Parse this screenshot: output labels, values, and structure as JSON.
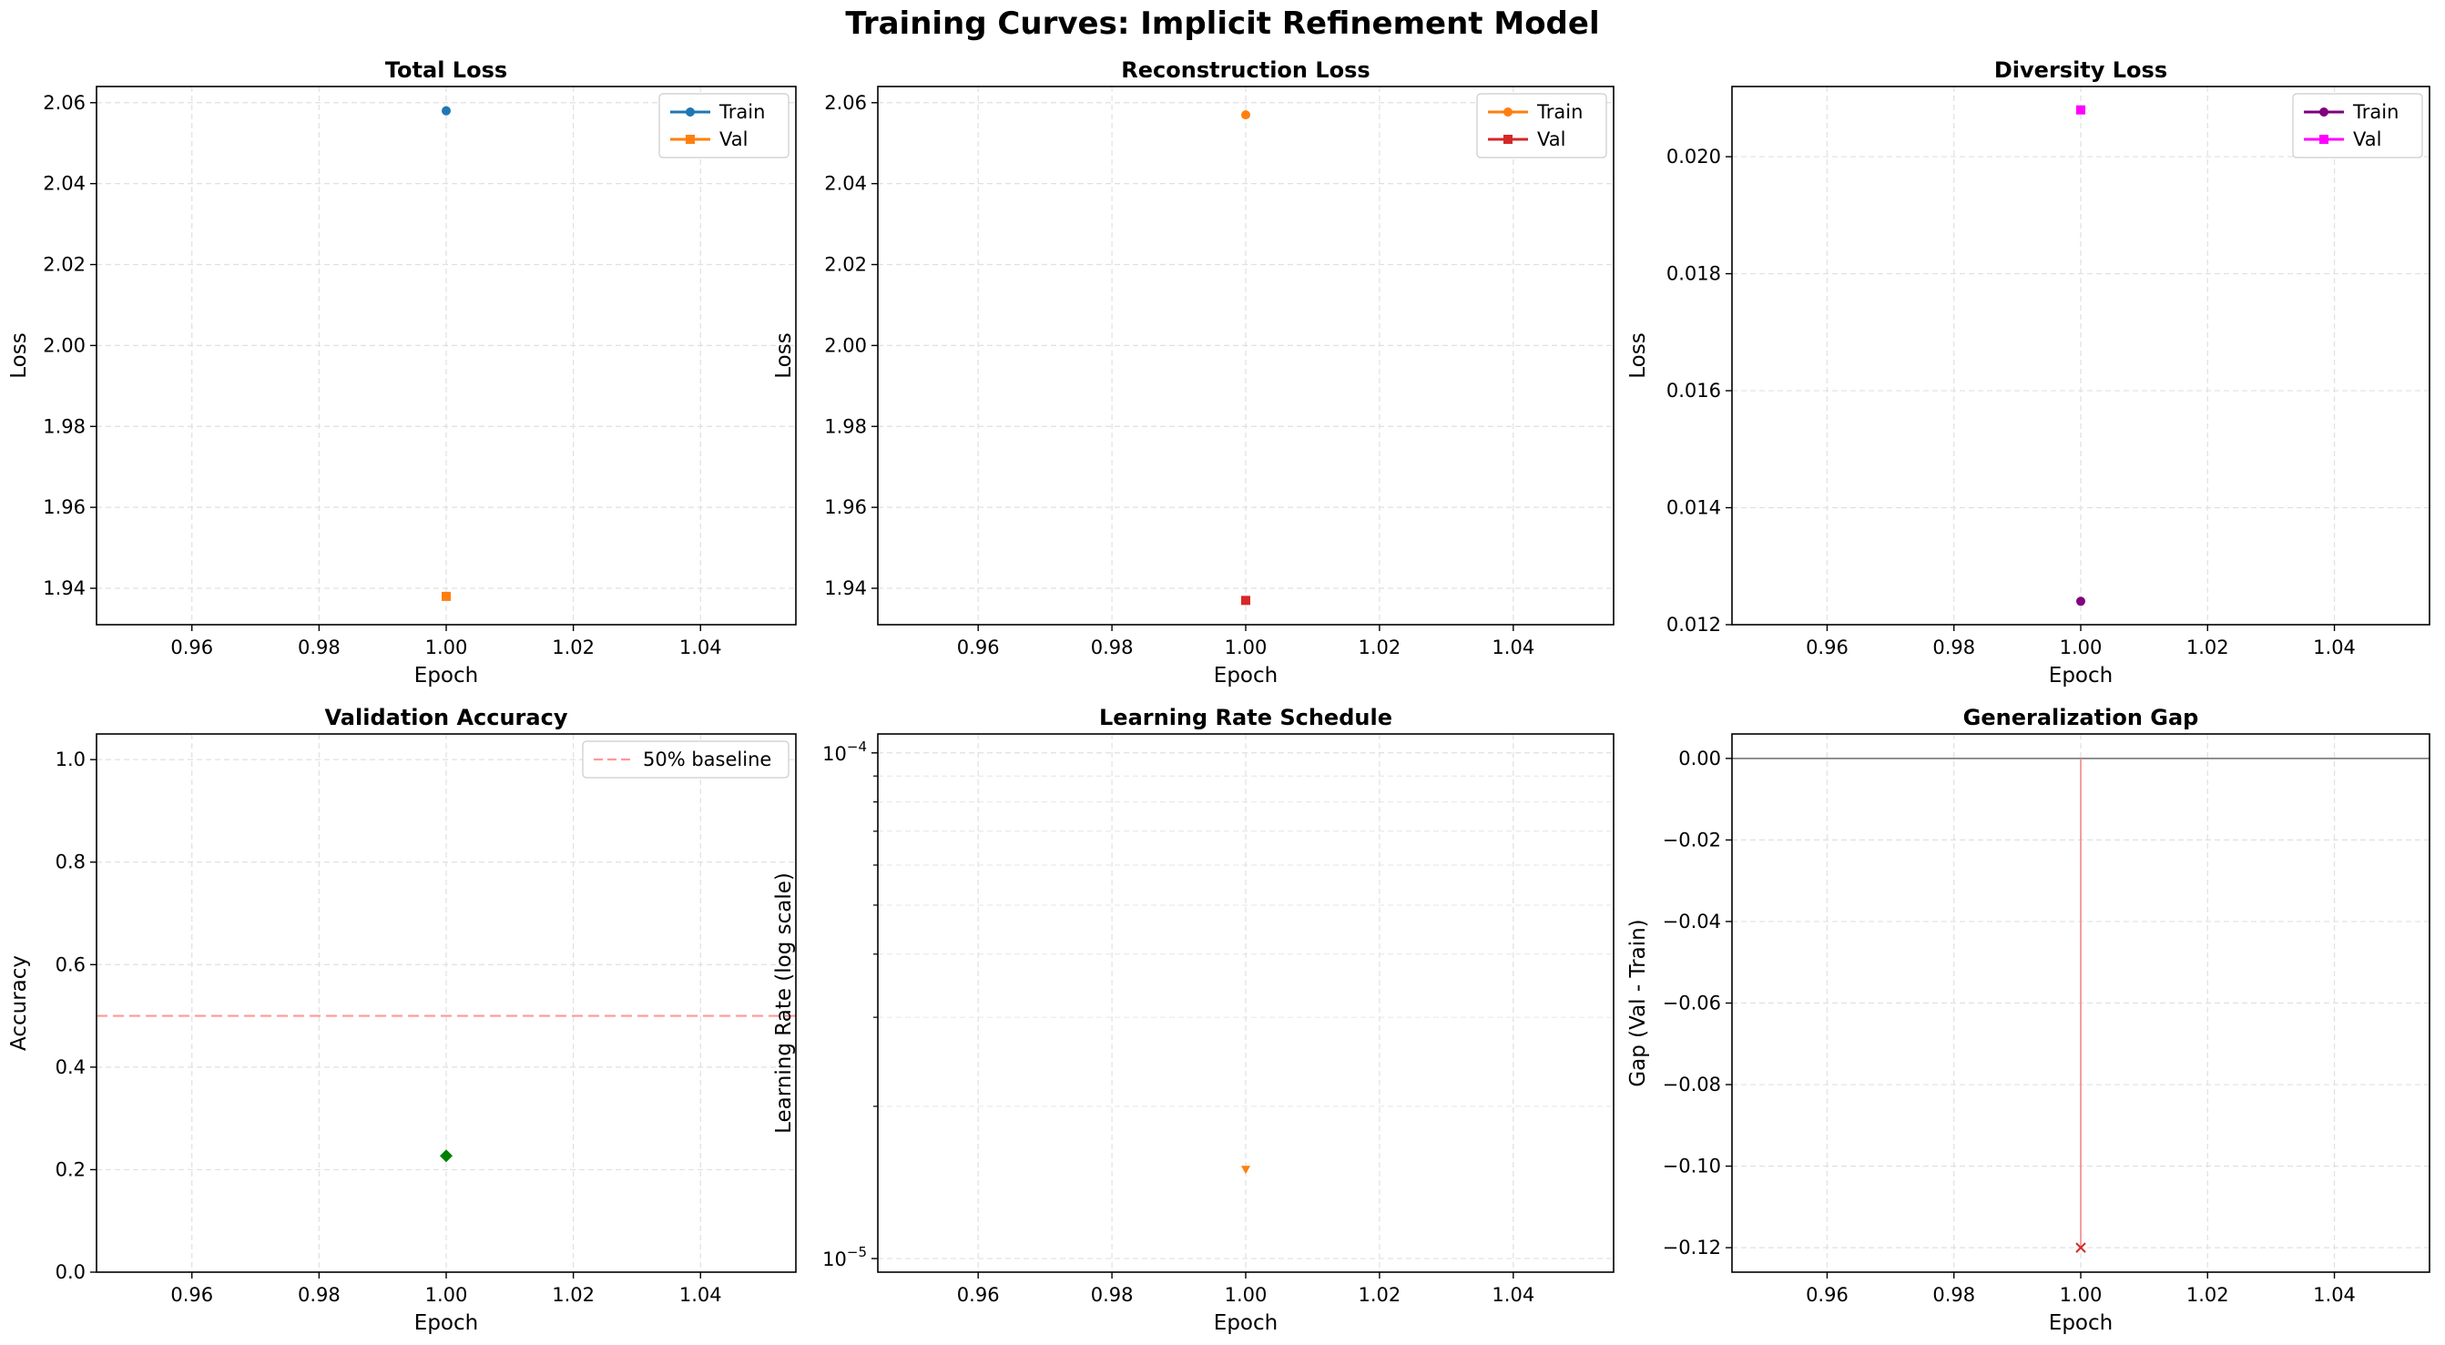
{
  "figure": {
    "title": "Training Curves: Implicit Refinement Model"
  },
  "chart_data": [
    {
      "type": "scatter",
      "title": "Total Loss",
      "xlabel": "Epoch",
      "ylabel": "Loss",
      "xlim": [
        0.945,
        1.055
      ],
      "ylim": [
        1.931,
        2.064
      ],
      "xticks": [
        0.96,
        0.98,
        1.0,
        1.02,
        1.04
      ],
      "xtick_labels": [
        "0.96",
        "0.98",
        "1.00",
        "1.02",
        "1.04"
      ],
      "yticks": [
        1.94,
        1.96,
        1.98,
        2.0,
        2.02,
        2.04,
        2.06
      ],
      "ytick_labels": [
        "1.94",
        "1.96",
        "1.98",
        "2.00",
        "2.02",
        "2.04",
        "2.06"
      ],
      "grid": true,
      "legend": "top-right",
      "series": [
        {
          "name": "Train",
          "x": [
            1.0
          ],
          "y": [
            2.058
          ],
          "color": "#1f77b4",
          "marker": "circle"
        },
        {
          "name": "Val",
          "x": [
            1.0
          ],
          "y": [
            1.938
          ],
          "color": "#ff7f0e",
          "marker": "square"
        }
      ]
    },
    {
      "type": "scatter",
      "title": "Reconstruction Loss",
      "xlabel": "Epoch",
      "ylabel": "Loss",
      "xlim": [
        0.945,
        1.055
      ],
      "ylim": [
        1.931,
        2.064
      ],
      "xticks": [
        0.96,
        0.98,
        1.0,
        1.02,
        1.04
      ],
      "xtick_labels": [
        "0.96",
        "0.98",
        "1.00",
        "1.02",
        "1.04"
      ],
      "yticks": [
        1.94,
        1.96,
        1.98,
        2.0,
        2.02,
        2.04,
        2.06
      ],
      "ytick_labels": [
        "1.94",
        "1.96",
        "1.98",
        "2.00",
        "2.02",
        "2.04",
        "2.06"
      ],
      "grid": true,
      "legend": "top-right",
      "series": [
        {
          "name": "Train",
          "x": [
            1.0
          ],
          "y": [
            2.057
          ],
          "color": "#ff7f0e",
          "marker": "circle"
        },
        {
          "name": "Val",
          "x": [
            1.0
          ],
          "y": [
            1.937
          ],
          "color": "#d62728",
          "marker": "square"
        }
      ]
    },
    {
      "type": "scatter",
      "title": "Diversity Loss",
      "xlabel": "Epoch",
      "ylabel": "Loss",
      "xlim": [
        0.945,
        1.055
      ],
      "ylim": [
        0.012,
        0.0212
      ],
      "xticks": [
        0.96,
        0.98,
        1.0,
        1.02,
        1.04
      ],
      "xtick_labels": [
        "0.96",
        "0.98",
        "1.00",
        "1.02",
        "1.04"
      ],
      "yticks": [
        0.012,
        0.014,
        0.016,
        0.018,
        0.02
      ],
      "ytick_labels": [
        "0.012",
        "0.014",
        "0.016",
        "0.018",
        "0.020"
      ],
      "grid": true,
      "legend": "top-right",
      "series": [
        {
          "name": "Train",
          "x": [
            1.0
          ],
          "y": [
            0.0124
          ],
          "color": "#800080",
          "marker": "circle"
        },
        {
          "name": "Val",
          "x": [
            1.0
          ],
          "y": [
            0.0208
          ],
          "color": "#ff00ff",
          "marker": "square"
        }
      ]
    },
    {
      "type": "scatter",
      "title": "Validation Accuracy",
      "xlabel": "Epoch",
      "ylabel": "Accuracy",
      "xlim": [
        0.945,
        1.055
      ],
      "ylim": [
        0.0,
        1.05
      ],
      "xticks": [
        0.96,
        0.98,
        1.0,
        1.02,
        1.04
      ],
      "xtick_labels": [
        "0.96",
        "0.98",
        "1.00",
        "1.02",
        "1.04"
      ],
      "yticks": [
        0.0,
        0.2,
        0.4,
        0.6,
        0.8,
        1.0
      ],
      "ytick_labels": [
        "0.0",
        "0.2",
        "0.4",
        "0.6",
        "0.8",
        "1.0"
      ],
      "grid": true,
      "legend": "top-right",
      "series": [
        {
          "x": [
            1.0
          ],
          "y": [
            0.227
          ],
          "color": "#008000",
          "marker": "diamond"
        }
      ],
      "hlines": [
        {
          "name": "50% baseline",
          "y": 0.5,
          "color": "#ff9896",
          "style": "dashed"
        }
      ]
    },
    {
      "type": "scatter",
      "title": "Learning Rate Schedule",
      "xlabel": "Epoch",
      "ylabel": "Learning Rate (log scale)",
      "yscale": "log",
      "xlim": [
        0.945,
        1.055
      ],
      "ylim": [
        9.4e-06,
        0.000109
      ],
      "xticks": [
        0.96,
        0.98,
        1.0,
        1.02,
        1.04
      ],
      "xtick_labels": [
        "0.96",
        "0.98",
        "1.00",
        "1.02",
        "1.04"
      ],
      "yticks": [
        1e-05,
        0.0001
      ],
      "ytick_labels": [
        [
          "10",
          "−5"
        ],
        [
          "10",
          "−4"
        ]
      ],
      "grid": true,
      "series": [
        {
          "x": [
            1.0
          ],
          "y": [
            1.5e-05
          ],
          "color": "#ff7f0e",
          "marker": "triangle-down"
        }
      ]
    },
    {
      "type": "scatter",
      "title": "Generalization Gap",
      "xlabel": "Epoch",
      "ylabel": "Gap (Val - Train)",
      "xlim": [
        0.945,
        1.055
      ],
      "ylim": [
        -0.126,
        0.006
      ],
      "xticks": [
        0.96,
        0.98,
        1.0,
        1.02,
        1.04
      ],
      "xtick_labels": [
        "0.96",
        "0.98",
        "1.00",
        "1.02",
        "1.04"
      ],
      "yticks": [
        0.0,
        -0.02,
        -0.04,
        -0.06,
        -0.08,
        -0.1,
        -0.12
      ],
      "ytick_labels": [
        "0.00",
        "−0.02",
        "−0.04",
        "−0.06",
        "−0.08",
        "−0.10",
        "−0.12"
      ],
      "grid": true,
      "series": [
        {
          "x": [
            1.0
          ],
          "y": [
            -0.12
          ],
          "color": "#d62728",
          "marker": "x"
        }
      ],
      "hlines": [
        {
          "y": 0.0,
          "color": "#808080",
          "style": "solid"
        }
      ]
    }
  ]
}
